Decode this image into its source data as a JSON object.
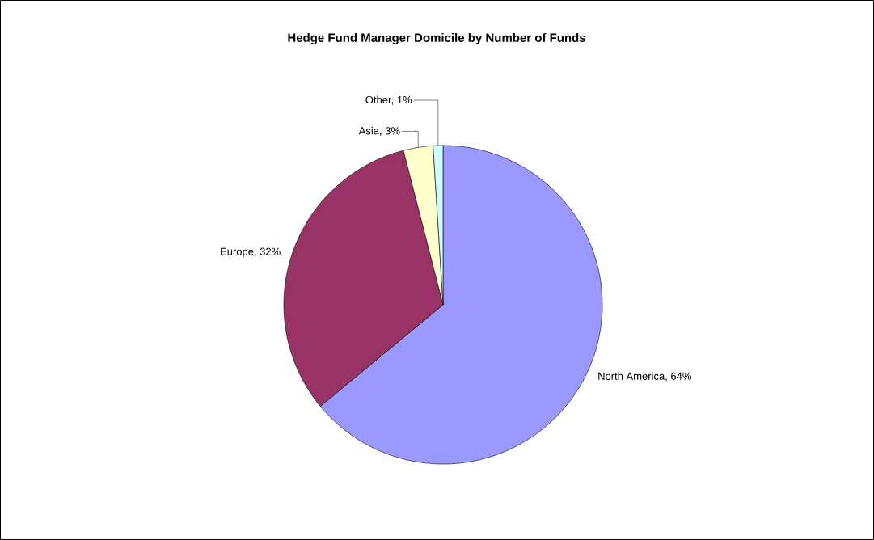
{
  "chart_data": {
    "type": "pie",
    "title": "Hedge Fund Manager Domicile by Number of Funds",
    "categories": [
      "North America, 64%",
      "Europe, 32%",
      "Asia, 3%",
      "Other, 1%"
    ],
    "values": [
      64,
      32,
      3,
      1
    ],
    "colors": [
      "#9999ff",
      "#993366",
      "#ffffcc",
      "#ccffff"
    ]
  }
}
